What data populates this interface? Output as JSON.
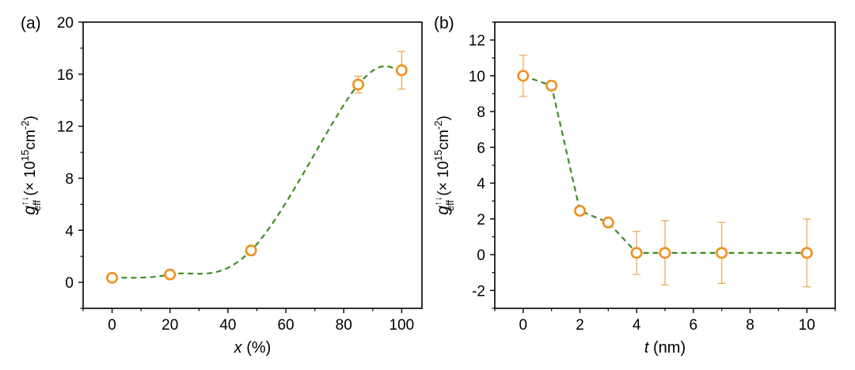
{
  "colors": {
    "marker": "#F0901E",
    "errorbar": "#E9A652",
    "line": "#3E8E22",
    "axis": "#000000"
  },
  "chart_data": [
    {
      "type": "line",
      "panel_label": "(a)",
      "xlabel_var": "x",
      "xlabel_unit": " (%)",
      "ylabel": {
        "sym": "g",
        "sup": "↑↓",
        "sub": "eff",
        "pre": " (× 10",
        "exp": "15",
        "mid": "cm",
        "exp2": "-2",
        "post": ")"
      },
      "xlim": [
        -10,
        107
      ],
      "ylim": [
        -2,
        20
      ],
      "xticks": [
        0,
        20,
        40,
        60,
        80,
        100
      ],
      "xtick_labels": [
        "0",
        "20",
        "40",
        "60",
        "80",
        "100"
      ],
      "yticks": [
        0,
        4,
        8,
        12,
        16,
        20
      ],
      "ytick_labels": [
        "0",
        "4",
        "8",
        "12",
        "16",
        "20"
      ],
      "points": [
        {
          "x": 0,
          "y": 0.35,
          "err": 0
        },
        {
          "x": 20,
          "y": 0.6,
          "err": 0
        },
        {
          "x": 48,
          "y": 2.45,
          "err": 0
        },
        {
          "x": 85,
          "y": 15.2,
          "err": 0.65
        },
        {
          "x": 100,
          "y": 16.3,
          "err": 1.45
        }
      ],
      "line_style": "dashed spline"
    },
    {
      "type": "line",
      "panel_label": "(b)",
      "xlabel_var": "t",
      "xlabel_unit": " (nm)",
      "ylabel": {
        "sym": "g",
        "sup": "↑↓",
        "sub": "eff",
        "pre": " (× 10",
        "exp": "15",
        "mid": "cm",
        "exp2": "-2",
        "post": ")"
      },
      "xlim": [
        -1,
        11
      ],
      "ylim": [
        -3,
        13
      ],
      "xticks": [
        0,
        2,
        4,
        6,
        8,
        10
      ],
      "xtick_labels": [
        "0",
        "2",
        "4",
        "6",
        "8",
        "10"
      ],
      "yticks": [
        -2,
        0,
        2,
        4,
        6,
        8,
        10,
        12
      ],
      "ytick_labels": [
        "-2",
        "0",
        "2",
        "4",
        "6",
        "8",
        "10",
        "12"
      ],
      "points": [
        {
          "x": 0,
          "y": 10.0,
          "err": 1.15
        },
        {
          "x": 1,
          "y": 9.45,
          "err": 0.15
        },
        {
          "x": 2,
          "y": 2.45,
          "err": 0.15
        },
        {
          "x": 3,
          "y": 1.8,
          "err": 0.1
        },
        {
          "x": 4,
          "y": 0.1,
          "err": 1.2
        },
        {
          "x": 5,
          "y": 0.1,
          "err": 1.8
        },
        {
          "x": 7,
          "y": 0.1,
          "err": 1.7
        },
        {
          "x": 10,
          "y": 0.1,
          "err": 1.9
        }
      ],
      "line_style": "dashed polyline"
    }
  ]
}
